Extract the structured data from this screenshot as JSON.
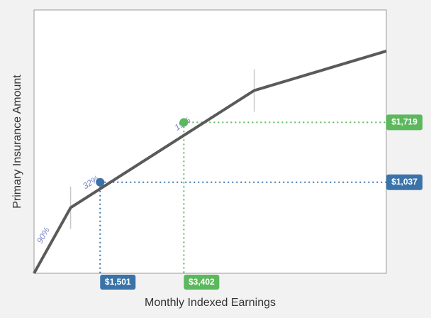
{
  "chart_data": {
    "type": "line",
    "xlabel": "Monthly Indexed Earnings",
    "ylabel": "Primary Insurance Amount",
    "xlim": [
      0,
      8000
    ],
    "ylim": [
      0,
      3000
    ],
    "grid": false,
    "series": [
      {
        "points": [
          [
            0,
            0
          ],
          [
            830,
            747
          ],
          [
            2000,
            1122
          ],
          [
            5000,
            2082
          ],
          [
            8000,
            2532
          ]
        ],
        "color": "#5a5a5a"
      }
    ],
    "rate_labels": [
      {
        "text": "90%",
        "segment": 0
      },
      {
        "text": "32%",
        "segment": 1
      },
      {
        "text": "15%",
        "segment": 2
      }
    ],
    "bend_points_x": [
      830,
      5000
    ],
    "markers": [
      {
        "x": 1501,
        "y": 1037,
        "x_label": "$1,501",
        "y_label": "$1,037",
        "color": "#3a73a8"
      },
      {
        "x": 3402,
        "y": 1719,
        "x_label": "$3,402",
        "y_label": "$1,719",
        "color": "#5cb85c"
      }
    ],
    "colors": {
      "background": "#f2f2f2",
      "plot_background": "#ffffff",
      "axis": "#999999",
      "rate_label": "#7b86c4",
      "bend_tick": "#c8c8c8"
    }
  }
}
